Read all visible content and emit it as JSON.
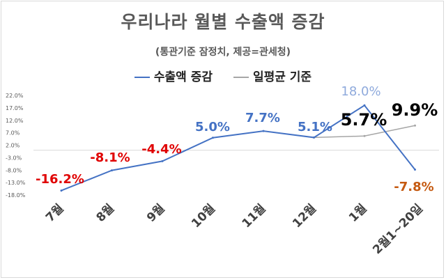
{
  "chart_data": {
    "type": "line",
    "title": "우리나라 월별 수출액 증감",
    "subtitle": "(통관기준 잠정치, 제공=관세청)",
    "categories": [
      "7월",
      "8월",
      "9월",
      "10월",
      "11월",
      "12월",
      "1월",
      "2월1~20일"
    ],
    "series": [
      {
        "name": "수출액 증감",
        "color": "#4472c4",
        "values": [
          -16.2,
          -8.1,
          -4.4,
          5.0,
          7.7,
          5.1,
          18.0,
          -7.8
        ]
      },
      {
        "name": "일평균 기준",
        "color": "#a6a6a6",
        "values": [
          null,
          null,
          null,
          null,
          null,
          5.1,
          5.7,
          9.9
        ]
      }
    ],
    "data_labels": [
      {
        "text": "-16.2%",
        "color": "#e00000"
      },
      {
        "text": "-8.1%",
        "color": "#e00000"
      },
      {
        "text": "-4.4%",
        "color": "#e00000"
      },
      {
        "text": "5.0%",
        "color": "#4472c4"
      },
      {
        "text": "7.7%",
        "color": "#4472c4"
      },
      {
        "text": "5.1%",
        "color": "#4472c4"
      },
      {
        "text": "18.0%",
        "color": "#8faadc"
      },
      {
        "text": "-7.8%",
        "color": "#c55a11"
      }
    ],
    "secondary_labels": [
      {
        "text": "5.7%",
        "color": "#000000"
      },
      {
        "text": "9.9%",
        "color": "#000000"
      }
    ],
    "yticks": [
      "22.0%",
      "17.0%",
      "12.0%",
      "7.0%",
      "2.0%",
      "-3.0%",
      "-8.0%",
      "-13.0%",
      "-18.0%"
    ],
    "ytick_values": [
      22,
      17,
      12,
      7,
      2,
      -3,
      -8,
      -13,
      -18
    ],
    "ylim": [
      -18,
      22
    ],
    "legend_position": "top",
    "grid": false
  }
}
